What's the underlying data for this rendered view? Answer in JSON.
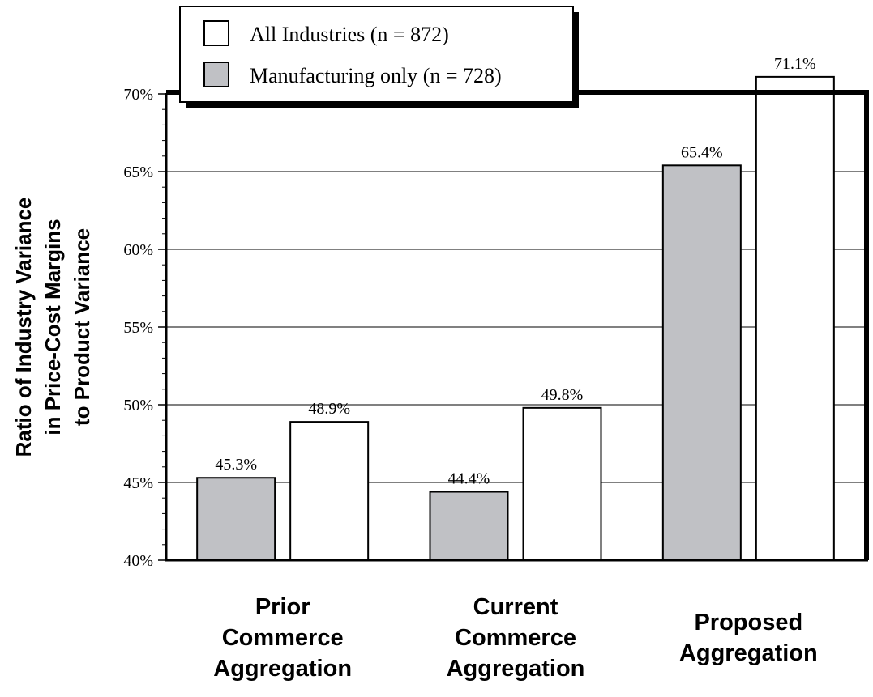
{
  "chart_data": {
    "type": "bar",
    "title": "",
    "ylabel_lines": [
      "Ratio of Industry Variance",
      "in Price-Cost Margins",
      "to Product Variance"
    ],
    "xlabel": "",
    "categories": [
      [
        "Prior",
        "Commerce",
        "Aggregation"
      ],
      [
        "Current",
        "Commerce",
        "Aggregation"
      ],
      [
        "Proposed",
        "Aggregation"
      ]
    ],
    "series": [
      {
        "name": "Manufacturing only (n = 728)",
        "color": "#c0c1c5",
        "values": [
          45.3,
          44.4,
          65.4
        ],
        "labels": [
          "45.3%",
          "44.4%",
          "65.4%"
        ]
      },
      {
        "name": "All Industries (n = 872)",
        "color": "#ffffff",
        "values": [
          48.9,
          49.8,
          71.1
        ],
        "labels": [
          "48.9%",
          "49.8%",
          "71.1%"
        ]
      }
    ],
    "legend_order": [
      1,
      0
    ],
    "ylim": [
      40,
      70
    ],
    "yticks": [
      40,
      45,
      50,
      55,
      60,
      65,
      70
    ],
    "ytick_labels": [
      "40%",
      "45%",
      "50%",
      "55%",
      "60%",
      "65%",
      "70%"
    ],
    "grid": true,
    "legend_position": "top-left"
  }
}
